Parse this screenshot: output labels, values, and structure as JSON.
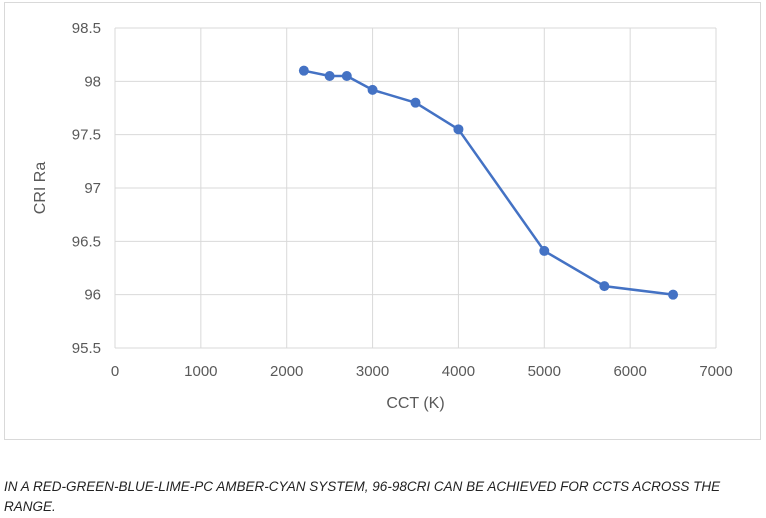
{
  "chart_data": {
    "type": "scatter",
    "mode": "lines+markers",
    "title": "",
    "xlabel": "CCT (K)",
    "ylabel": "CRI Ra",
    "xlim": [
      0,
      7000
    ],
    "ylim": [
      95.5,
      98.5
    ],
    "xticks": [
      0,
      1000,
      2000,
      3000,
      4000,
      5000,
      6000,
      7000
    ],
    "xtick_labels": [
      "0",
      "1000",
      "2000",
      "3000",
      "4000",
      "5000",
      "6000",
      "7000"
    ],
    "yticks": [
      95.5,
      96,
      96.5,
      97,
      97.5,
      98,
      98.5
    ],
    "ytick_labels": [
      "95.5",
      "96",
      "96.5",
      "97",
      "97.5",
      "98",
      "98.5"
    ],
    "grid": true,
    "legend": "none",
    "series": [
      {
        "x": [
          2200,
          2500,
          2700,
          3000,
          3500,
          4000,
          5000,
          5700,
          6500
        ],
        "y": [
          98.1,
          98.05,
          98.05,
          97.92,
          97.8,
          97.55,
          96.41,
          96.08,
          96.0
        ],
        "color": "#4472C4"
      }
    ]
  },
  "caption": "In a red-green-blue-lime-PC amber-cyan system, 96-98CRI can be achieved for CCTs across the range."
}
